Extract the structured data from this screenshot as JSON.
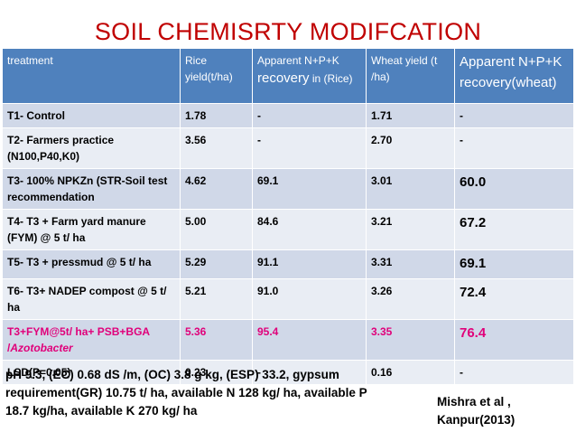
{
  "title": "SOIL CHEMISRTY MODIFCATION",
  "table": {
    "headers": [
      {
        "text": "treatment",
        "extra": ""
      },
      {
        "text": "Rice yield(t/ha)",
        "extra": ""
      },
      {
        "text": "Apparent N+P+K ",
        "extra": "recovery",
        "tail": " in (Rice)"
      },
      {
        "text": "Wheat yield (t /ha)",
        "extra": ""
      },
      {
        "text": "Apparent N+P+K recovery(wheat)",
        "extra": ""
      }
    ],
    "rows": [
      {
        "cells": [
          "T1- Control",
          "1.78",
          "-",
          "1.71",
          "-"
        ]
      },
      {
        "cells": [
          "T2- Farmers practice (N100,P40,K0)",
          "3.56",
          "-",
          "2.70",
          "-"
        ]
      },
      {
        "cells": [
          "T3- 100% NPKZn (STR-Soil test recommendation",
          "4.62",
          "69.1",
          "3.01",
          "60.0"
        ]
      },
      {
        "cells": [
          "T4- T3 + Farm yard manure (FYM) @ 5 t/ ha",
          "5.00",
          "84.6",
          "3.21",
          "67.2"
        ]
      },
      {
        "cells": [
          "T5- T3 + pressmud @ 5 t/ ha",
          "5.29",
          "91.1",
          "3.31",
          "69.1"
        ]
      },
      {
        "cells": [
          "T6- T3+ NADEP compost @ 5 t/ ha",
          "5.21",
          "91.0",
          "3.26",
          "72.4"
        ]
      },
      {
        "cells": [
          "T3+FYM@5t/ ha+ PSB+BGA /",
          "5.36",
          "95.4",
          "3.35",
          "76.4"
        ],
        "italic": "Azotobacter"
      },
      {
        "cells": [
          "LSD(P=0.05)",
          "0.23",
          "-",
          "0.16",
          "-"
        ]
      }
    ]
  },
  "note": "pH 9.3, (EC) 0.68 dS /m, (OC) 3.8 g kg, (ESP) 33.2, gypsum requirement(GR) 10.75 t/ ha, available N 128 kg/ ha, available P 18.7 kg/ha, available K 270 kg/ ha",
  "citation": {
    "line1": "Mishra et al ,",
    "line2": "Kanpur(2013)"
  },
  "colors": {
    "title": "#c00000",
    "header": "#4f81bd",
    "row_odd": "#d0d8e8",
    "row_even": "#e9edf4",
    "highlight": "#e0007a"
  }
}
